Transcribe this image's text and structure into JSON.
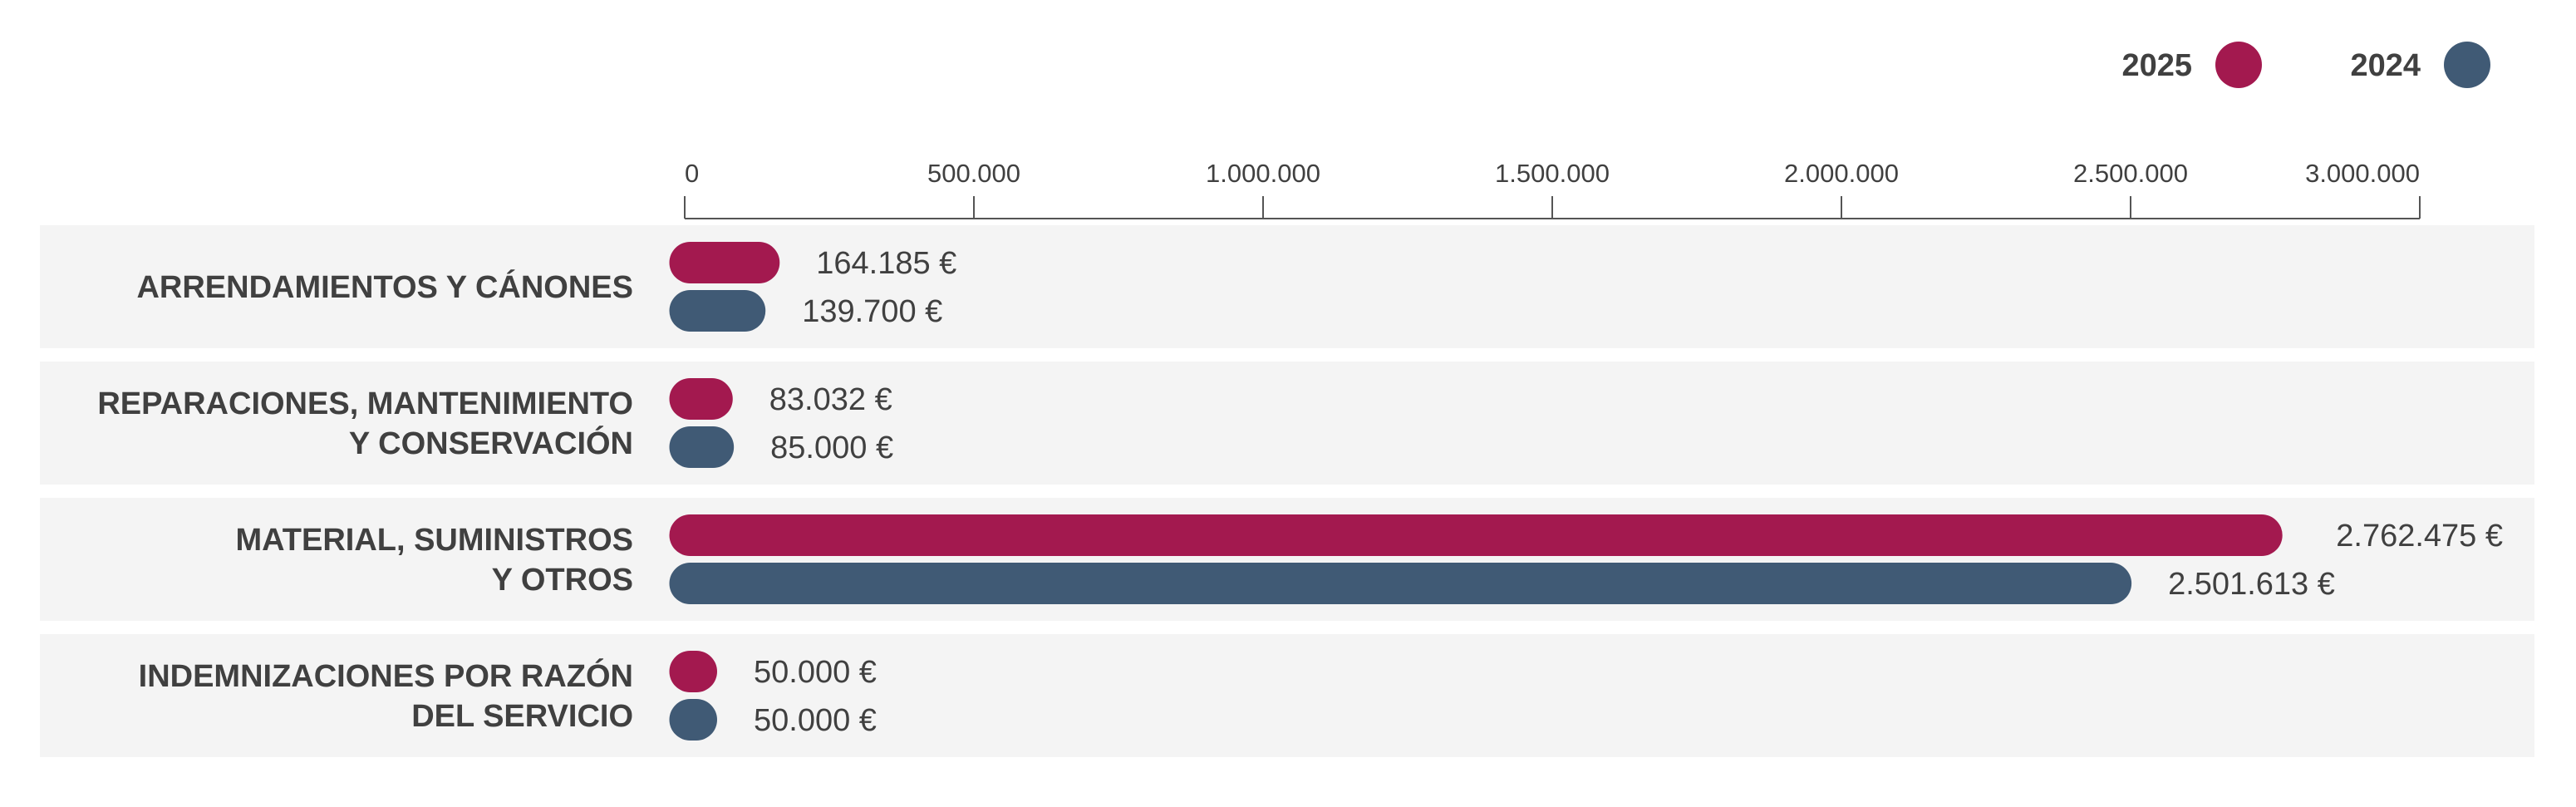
{
  "colors": {
    "series_2025": "#A3194F",
    "series_2024": "#405A75",
    "row_background": "#F4F4F4",
    "axis": "#555555",
    "text": "#404040"
  },
  "chart_data": {
    "type": "bar",
    "orientation": "horizontal",
    "title": "",
    "xlabel": "",
    "ylabel": "",
    "xlim": [
      0,
      3000000
    ],
    "x_ticks": [
      0,
      500000,
      1000000,
      1500000,
      2000000,
      2500000,
      3000000
    ],
    "x_tick_labels": [
      "0",
      "500.000",
      "1.000.000",
      "1.500.000",
      "2.000.000",
      "2.500.000",
      "3.000.000"
    ],
    "axis_position": "top",
    "grid": false,
    "legend_position": "top-right",
    "categories": [
      [
        "ARRENDAMIENTOS Y CÁNONES"
      ],
      [
        "REPARACIONES, MANTENIMIENTO",
        "Y CONSERVACIÓN"
      ],
      [
        "MATERIAL, SUMINISTROS",
        "Y OTROS"
      ],
      [
        "INDEMNIZACIONES POR RAZÓN",
        "DEL SERVICIO"
      ]
    ],
    "series": [
      {
        "name": "2025",
        "color": "#A3194F",
        "values": [
          164185,
          83032,
          2762475,
          50000
        ],
        "labels": [
          "164.185 €",
          "83.032 €",
          "2.762.475 €",
          "50.000 €"
        ]
      },
      {
        "name": "2024",
        "color": "#405A75",
        "values": [
          139700,
          85000,
          2501613,
          50000
        ],
        "labels": [
          "139.700 €",
          "85.000 €",
          "2.501.613 €",
          "50.000 €"
        ]
      }
    ]
  }
}
